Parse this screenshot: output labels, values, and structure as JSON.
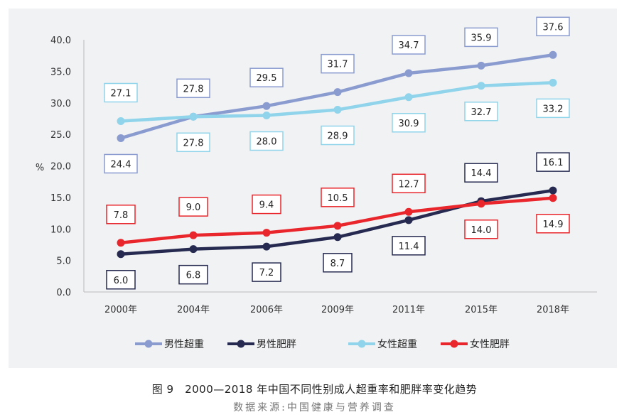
{
  "chart_data": {
    "type": "line",
    "categories": [
      "2000年",
      "2004年",
      "2006年",
      "2009年",
      "2011年",
      "2015年",
      "2018年"
    ],
    "ylabel": "%",
    "ylim": [
      0,
      40
    ],
    "yticks": [
      "0.0",
      "5.0",
      "10.0",
      "15.0",
      "20.0",
      "25.0",
      "30.0",
      "35.0",
      "40.0"
    ],
    "grid": false,
    "legend_position": "bottom",
    "series": [
      {
        "name": "男性超重",
        "color": "#8a9bd0",
        "values": [
          24.4,
          27.8,
          29.5,
          31.7,
          34.7,
          35.9,
          37.6
        ],
        "labels": [
          "24.4",
          "27.8",
          "29.5",
          "31.7",
          "34.7",
          "35.9",
          "37.6"
        ],
        "label_side": [
          "below",
          "above",
          "above",
          "above",
          "above",
          "above",
          "above"
        ]
      },
      {
        "name": "男性肥胖",
        "color": "#262a50",
        "values": [
          6.0,
          6.8,
          7.2,
          8.7,
          11.4,
          14.4,
          16.1
        ],
        "labels": [
          "6.0",
          "6.8",
          "7.2",
          "8.7",
          "11.4",
          "14.4",
          "16.1"
        ],
        "label_side": [
          "below",
          "below",
          "below",
          "below",
          "below",
          "above",
          "above"
        ]
      },
      {
        "name": "女性超重",
        "color": "#8fd4ea",
        "values": [
          27.1,
          27.8,
          28.0,
          28.9,
          30.9,
          32.7,
          33.2
        ],
        "labels": [
          "27.1",
          "27.8",
          "28.0",
          "28.9",
          "30.9",
          "32.7",
          "33.2"
        ],
        "label_side": [
          "above",
          "below",
          "below",
          "below",
          "below",
          "below",
          "below"
        ]
      },
      {
        "name": "女性肥胖",
        "color": "#e8262b",
        "values": [
          7.8,
          9.0,
          9.4,
          10.5,
          12.7,
          14.0,
          14.9
        ],
        "labels": [
          "7.8",
          "9.0",
          "9.4",
          "10.5",
          "12.7",
          "14.0",
          "14.9"
        ],
        "label_side": [
          "above",
          "above",
          "above",
          "above",
          "above",
          "below",
          "below"
        ]
      }
    ]
  },
  "caption": {
    "title": "图 9　2000—2018 年中国不同性别成人超重率和肥胖率变化趋势",
    "source": "数据来源:中国健康与营养调查"
  }
}
